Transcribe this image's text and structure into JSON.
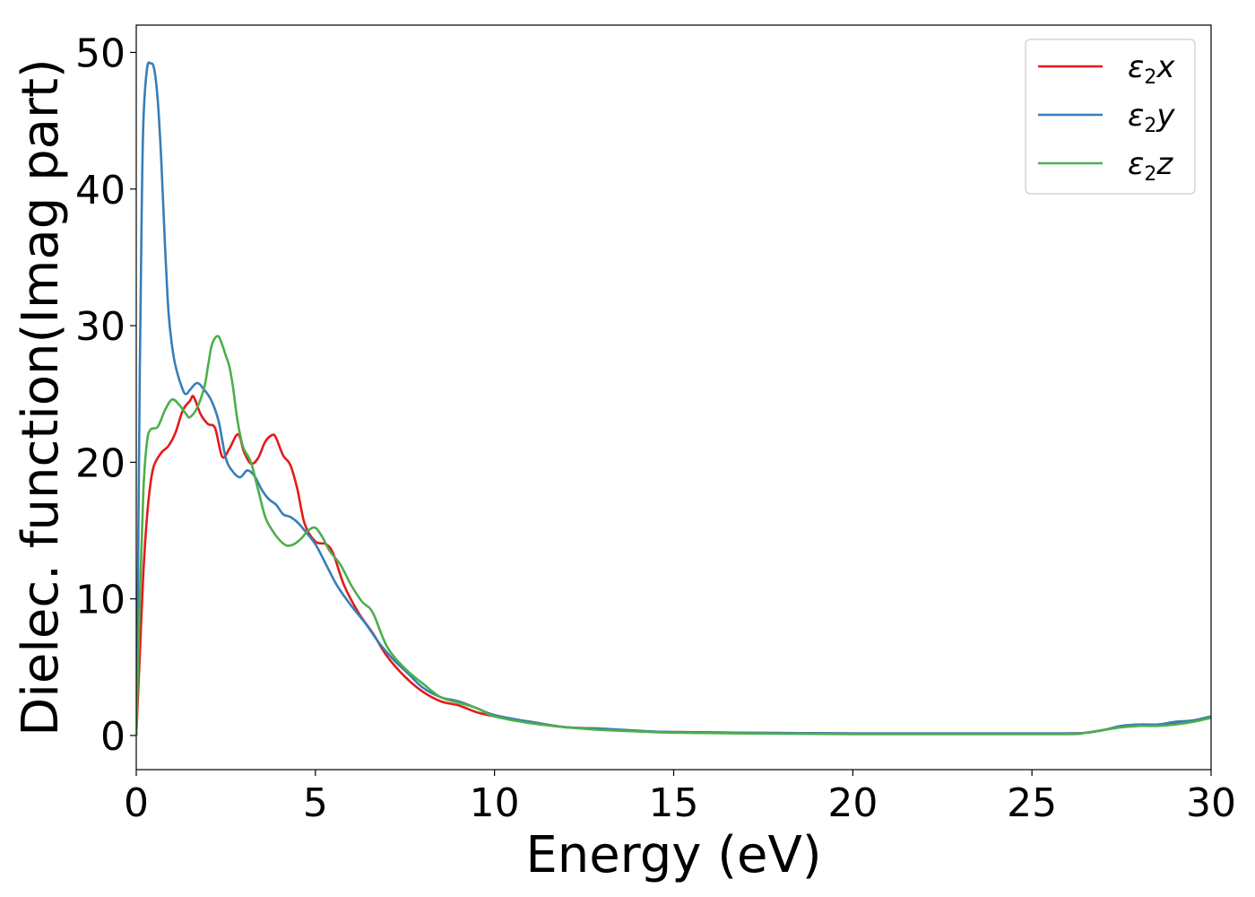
{
  "chart_data": {
    "type": "line",
    "xlabel": "Energy (eV)",
    "ylabel": "Dielec. function(Imag part)",
    "xlim": [
      0,
      30
    ],
    "ylim": [
      -2.5,
      52
    ],
    "xticks": [
      "0",
      "5",
      "10",
      "15",
      "20",
      "25",
      "30"
    ],
    "yticks": [
      "0",
      "10",
      "20",
      "30",
      "40",
      "50"
    ],
    "grid": false,
    "legend_position": "top-right",
    "series": [
      {
        "name": "ε2x",
        "legend": {
          "base": "ε",
          "sub": "2",
          "suffix": "x"
        },
        "color": "#e41a1c",
        "x": [
          0,
          0.1,
          0.2,
          0.3,
          0.4,
          0.5,
          0.7,
          0.9,
          1.1,
          1.3,
          1.5,
          1.6,
          1.8,
          2.0,
          2.2,
          2.4,
          2.6,
          2.8,
          2.9,
          3.0,
          3.2,
          3.4,
          3.6,
          3.8,
          3.9,
          4.1,
          4.3,
          4.5,
          4.7,
          5.0,
          5.3,
          5.5,
          5.8,
          6.2,
          6.6,
          7.0,
          7.5,
          8.0,
          8.5,
          9.0,
          9.5,
          10.0,
          11.0,
          12.0,
          13.0,
          14.0,
          15.0,
          17.0,
          20.0,
          23.0,
          26.0,
          26.5,
          27.0,
          27.5,
          28.0,
          28.5,
          29.0,
          29.5,
          30.0
        ],
        "y": [
          0,
          6,
          12,
          16,
          18.5,
          19.8,
          20.7,
          21.2,
          22.2,
          23.8,
          24.5,
          24.8,
          23.5,
          22.8,
          22.5,
          20.4,
          21.0,
          22.0,
          21.8,
          20.8,
          19.9,
          20.3,
          21.5,
          22.0,
          21.8,
          20.5,
          19.8,
          18.0,
          15.5,
          14.2,
          14.0,
          13.3,
          11.0,
          9.0,
          7.5,
          5.8,
          4.3,
          3.2,
          2.5,
          2.2,
          1.7,
          1.4,
          1.0,
          0.6,
          0.5,
          0.3,
          0.25,
          0.2,
          0.15,
          0.15,
          0.15,
          0.2,
          0.4,
          0.7,
          0.8,
          0.8,
          0.9,
          1.1,
          1.3
        ]
      },
      {
        "name": "ε2y",
        "legend": {
          "base": "ε",
          "sub": "2",
          "suffix": "y"
        },
        "color": "#377eb8",
        "x": [
          0,
          0.05,
          0.1,
          0.15,
          0.2,
          0.3,
          0.4,
          0.5,
          0.6,
          0.7,
          0.8,
          0.9,
          1.0,
          1.1,
          1.3,
          1.4,
          1.5,
          1.7,
          1.9,
          2.1,
          2.3,
          2.5,
          2.7,
          2.9,
          3.1,
          3.3,
          3.5,
          3.7,
          3.9,
          4.1,
          4.3,
          4.5,
          4.7,
          5.0,
          5.3,
          5.6,
          6.0,
          6.4,
          6.8,
          7.2,
          7.6,
          8.0,
          8.5,
          9.0,
          9.5,
          10.0,
          11.0,
          12.0,
          13.0,
          14.0,
          15.0,
          17.0,
          20.0,
          23.0,
          26.0,
          26.5,
          27.0,
          27.5,
          28.0,
          28.5,
          29.0,
          29.5,
          30.0
        ],
        "y": [
          0,
          12,
          27,
          38,
          45,
          48.8,
          49.2,
          48.8,
          46.5,
          42.0,
          36.0,
          31.0,
          28.5,
          27.0,
          25.3,
          25.0,
          25.3,
          25.8,
          25.3,
          24.5,
          23.0,
          20.3,
          19.3,
          18.9,
          19.4,
          19.0,
          18.0,
          17.3,
          16.9,
          16.2,
          16.0,
          15.6,
          15.0,
          14.0,
          12.5,
          11.0,
          9.5,
          8.2,
          6.7,
          5.5,
          4.5,
          3.5,
          2.8,
          2.5,
          2.0,
          1.5,
          1.0,
          0.6,
          0.5,
          0.35,
          0.25,
          0.2,
          0.15,
          0.15,
          0.15,
          0.2,
          0.4,
          0.7,
          0.8,
          0.8,
          1.0,
          1.1,
          1.4
        ]
      },
      {
        "name": "ε2z",
        "legend": {
          "base": "ε",
          "sub": "2",
          "suffix": "z"
        },
        "color": "#4daf4a",
        "x": [
          0,
          0.1,
          0.2,
          0.3,
          0.4,
          0.6,
          0.8,
          1.0,
          1.2,
          1.4,
          1.5,
          1.7,
          1.9,
          2.0,
          2.1,
          2.2,
          2.3,
          2.4,
          2.5,
          2.6,
          2.7,
          2.8,
          2.9,
          3.0,
          3.2,
          3.4,
          3.6,
          3.8,
          4.0,
          4.2,
          4.4,
          4.6,
          4.8,
          5.0,
          5.2,
          5.4,
          5.7,
          6.0,
          6.3,
          6.6,
          7.0,
          7.5,
          8.0,
          8.5,
          9.0,
          9.5,
          10.0,
          11.0,
          12.0,
          13.0,
          14.0,
          15.0,
          17.0,
          20.0,
          23.0,
          26.0,
          26.5,
          27.0,
          27.5,
          28.0,
          28.5,
          29.0,
          29.5,
          30.0
        ],
        "y": [
          0,
          10,
          18,
          21.5,
          22.4,
          22.6,
          23.8,
          24.6,
          24.2,
          23.5,
          23.3,
          24.0,
          25.5,
          27.0,
          28.5,
          29.1,
          29.2,
          28.6,
          27.8,
          27.0,
          25.5,
          23.5,
          22.0,
          21.0,
          20.0,
          18.0,
          16.0,
          15.0,
          14.3,
          13.9,
          14.0,
          14.4,
          15.0,
          15.2,
          14.5,
          13.5,
          12.5,
          11.0,
          9.8,
          9.0,
          6.5,
          4.9,
          3.8,
          2.8,
          2.4,
          2.0,
          1.4,
          0.9,
          0.6,
          0.4,
          0.3,
          0.2,
          0.15,
          0.1,
          0.1,
          0.1,
          0.2,
          0.4,
          0.6,
          0.7,
          0.7,
          0.8,
          1.0,
          1.3
        ]
      }
    ]
  }
}
